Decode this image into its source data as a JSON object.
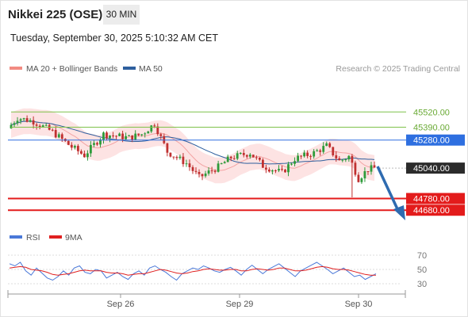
{
  "header": {
    "title": "Nikkei 225 (OSE)",
    "timeframe": "30 MIN",
    "datetime": "Tuesday, September 30, 2025 5:10:32 AM CET"
  },
  "legend": {
    "items": [
      {
        "label": "MA 20 + Bollinger Bands",
        "color": "#f28b82"
      },
      {
        "label": "MA 50",
        "color": "#2e5f9e"
      }
    ],
    "copyright": "Research © 2025 Trading Central"
  },
  "rsi_legend": {
    "items": [
      {
        "label": "RSI",
        "color": "#4a78d8"
      },
      {
        "label": "9MA",
        "color": "#e02020"
      }
    ]
  },
  "colors": {
    "up": "#2e9b3a",
    "down": "#c03030",
    "band": "#fde3e3",
    "ma20": "#f3a3a3",
    "ma50": "#2e5f9e",
    "support": "#e31b1b",
    "resistance_green": "#7fc24a",
    "pivot": "#2e6fe0",
    "arrow": "#2e6bb0",
    "current": "#2b2b2b"
  },
  "chart_data": {
    "type": "candlestick",
    "ylim": [
      44580,
      45800
    ],
    "x_ticks": [
      "Sep 26",
      "Sep 29",
      "Sep 30"
    ],
    "levels": [
      {
        "value": 45520,
        "label": "45520.00",
        "kind": "resistance"
      },
      {
        "value": 45390,
        "label": "45390.00",
        "kind": "resistance"
      },
      {
        "value": 45280,
        "label": "45280.00",
        "kind": "pivot"
      },
      {
        "value": 45040,
        "label": "45040.00",
        "kind": "current"
      },
      {
        "value": 44780,
        "label": "44780.00",
        "kind": "support"
      },
      {
        "value": 44680,
        "label": "44680.00",
        "kind": "support"
      }
    ],
    "rsi": {
      "ticks": [
        70,
        50,
        30
      ],
      "ylim": [
        20,
        80
      ],
      "rsi_values": [
        58,
        55,
        60,
        48,
        42,
        52,
        45,
        38,
        35,
        40,
        48,
        42,
        52,
        55,
        46,
        44,
        50,
        48,
        38,
        42,
        46,
        40,
        36,
        44,
        48,
        42,
        52,
        55,
        50,
        46,
        40,
        35,
        44,
        48,
        52,
        50,
        55,
        52,
        48,
        46,
        50,
        53,
        48,
        42,
        50,
        56,
        50,
        44,
        50,
        54,
        58,
        52,
        46,
        40,
        48,
        52,
        56,
        60,
        55,
        50,
        44,
        48,
        52,
        46,
        40,
        42,
        36,
        40,
        44
      ],
      "ma_values": [
        52,
        53,
        54,
        53,
        50,
        49,
        48,
        46,
        43,
        42,
        43,
        44,
        46,
        48,
        49,
        48,
        48,
        48,
        46,
        45,
        45,
        44,
        42,
        43,
        44,
        44,
        46,
        48,
        50,
        49,
        47,
        45,
        44,
        45,
        47,
        48,
        50,
        51,
        50,
        49,
        49,
        50,
        50,
        48,
        48,
        50,
        51,
        50,
        49,
        50,
        52,
        52,
        50,
        48,
        48,
        49,
        51,
        53,
        54,
        53,
        51,
        50,
        50,
        49,
        47,
        45,
        43,
        42,
        42
      ]
    }
  }
}
